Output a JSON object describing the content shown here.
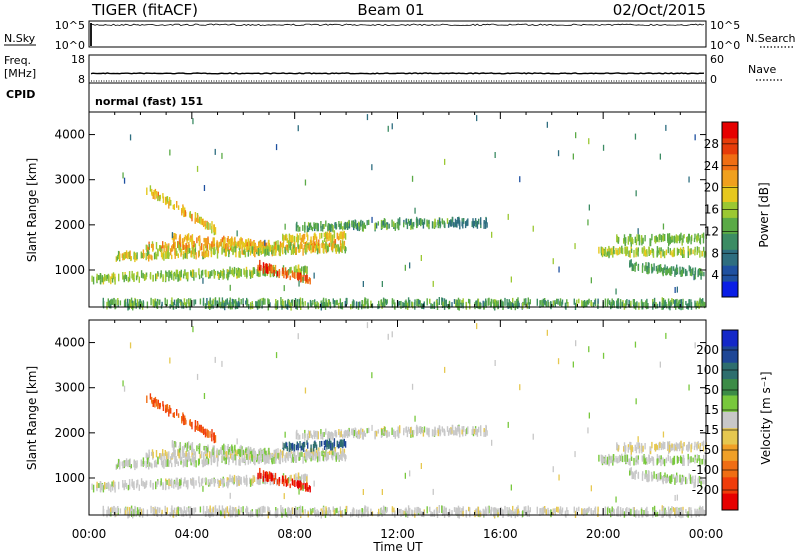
{
  "header": {
    "title": "TIGER (fitACF)",
    "beam": "Beam 01",
    "date": "02/Oct/2015"
  },
  "side_labels": {
    "nsky": "N.Sky",
    "nsearch": "N.Search",
    "freq_line1": "Freq.",
    "freq_line2": "[MHz]",
    "nave": "Nave",
    "cpid": "CPID"
  },
  "cpid_text": "normal (fast) 151",
  "noise_panel": {
    "left_ticks": [
      "10^5",
      "10^0"
    ],
    "right_ticks": [
      "10^5",
      "10^0"
    ]
  },
  "freq_panel": {
    "left_ticks": [
      "18",
      "8"
    ],
    "right_ticks": [
      "60",
      "0"
    ],
    "frequency_mhz": 10,
    "nave": 0
  },
  "colors": {
    "power_scale": [
      "#0a1ee6",
      "#1e50a0",
      "#2e6e80",
      "#3c8c64",
      "#5aaa46",
      "#9bc832",
      "#e6c81e",
      "#f0a01e",
      "#f06e14",
      "#e63c0a",
      "#e60000"
    ],
    "velocity_scale": [
      "#1428c8",
      "#1e4696",
      "#2e6e6e",
      "#3c8c46",
      "#78c83c",
      "#c8c8c8",
      "#e6c850",
      "#f0a028",
      "#f06e14",
      "#f03c0a",
      "#e60000"
    ]
  },
  "chart_data": [
    {
      "type": "heatmap",
      "title": "",
      "xlabel": "Time UT",
      "ylabel": "Slant Range [km]",
      "x_tick_labels": [
        "00:00",
        "04:00",
        "08:00",
        "12:00",
        "16:00",
        "20:00",
        "00:00"
      ],
      "y_tick_labels": [
        "1000",
        "2000",
        "3000",
        "4000"
      ],
      "xlim": [
        0,
        24
      ],
      "ylim": [
        180,
        4500
      ],
      "colorbar": {
        "label": "Power [dB]",
        "range": [
          0,
          32
        ],
        "ticks": [
          "4",
          "8",
          "12",
          "16",
          "20",
          "24",
          "28"
        ]
      },
      "echo_bands": [
        {
          "t0": 2.2,
          "t1": 10.0,
          "r0": 1500,
          "r1": 1550,
          "p0": 14,
          "p1": 26,
          "v": -10
        },
        {
          "t0": 3.2,
          "t1": 7.0,
          "r0": 1700,
          "r1": 1550,
          "p0": 18,
          "p1": 24,
          "v": 10
        },
        {
          "t0": 1.0,
          "t1": 10.0,
          "r0": 1300,
          "r1": 1500,
          "p0": 12,
          "p1": 22,
          "v": 5
        },
        {
          "t0": 0.0,
          "t1": 8.5,
          "r0": 800,
          "r1": 1000,
          "p0": 12,
          "p1": 18,
          "v": 0
        },
        {
          "t0": 2.2,
          "t1": 5.0,
          "r0": 2800,
          "r1": 1850,
          "p0": 16,
          "p1": 24,
          "v": -150
        },
        {
          "t0": 6.5,
          "t1": 8.6,
          "r0": 1100,
          "r1": 750,
          "p0": 22,
          "p1": 30,
          "v": -200
        },
        {
          "t0": 7.5,
          "t1": 10.0,
          "r0": 1700,
          "r1": 1750,
          "p0": 16,
          "p1": 22,
          "v": 150
        },
        {
          "t0": 8.0,
          "t1": 14.0,
          "r0": 1950,
          "r1": 2050,
          "p0": 8,
          "p1": 16,
          "v": 0
        },
        {
          "t0": 14.0,
          "t1": 15.5,
          "r0": 2050,
          "r1": 2050,
          "p0": 6,
          "p1": 10,
          "v": 0
        },
        {
          "t0": 19.8,
          "t1": 24.0,
          "r0": 1400,
          "r1": 1400,
          "p0": 12,
          "p1": 20,
          "v": 10
        },
        {
          "t0": 20.5,
          "t1": 24.0,
          "r0": 1650,
          "r1": 1700,
          "p0": 12,
          "p1": 16,
          "v": -5
        },
        {
          "t0": 21.0,
          "t1": 24.0,
          "r0": 1100,
          "r1": 900,
          "p0": 10,
          "p1": 14,
          "v": 5
        },
        {
          "t0": 0.5,
          "t1": 24.0,
          "r0": 250,
          "r1": 250,
          "p0": 8,
          "p1": 16,
          "v": 0
        }
      ]
    },
    {
      "type": "heatmap",
      "title": "",
      "xlabel": "Time UT",
      "ylabel": "Slant Range [km]",
      "x_tick_labels": [
        "00:00",
        "04:00",
        "08:00",
        "12:00",
        "16:00",
        "20:00",
        "00:00"
      ],
      "y_tick_labels": [
        "1000",
        "2000",
        "3000",
        "4000"
      ],
      "xlim": [
        0,
        24
      ],
      "ylim": [
        180,
        4500
      ],
      "colorbar": {
        "label": "Velocity [m s⁻¹]",
        "ticks": [
          "200",
          "100",
          "50",
          "15",
          "-15",
          "-50",
          "-100",
          "-200"
        ]
      }
    }
  ]
}
